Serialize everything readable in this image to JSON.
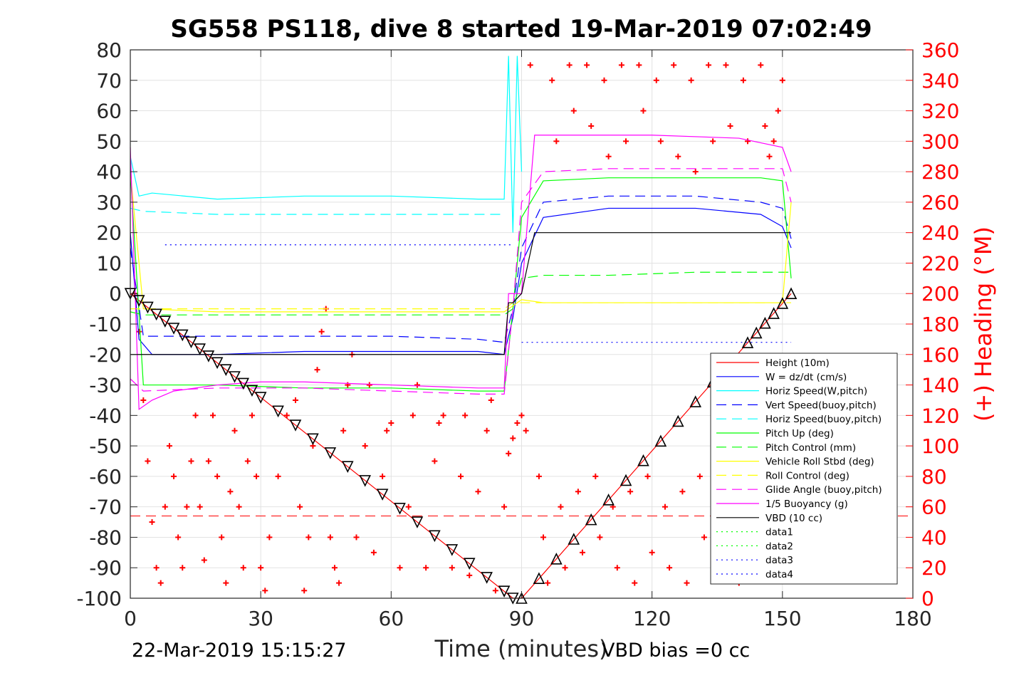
{
  "chart_data": {
    "type": "line",
    "title": "SG558 PS118, dive 8 started 19-Mar-2019 07:02:49",
    "xlabel": "Time (minutes)",
    "ylabel": "",
    "y2label": "(+) Heading (°M)",
    "xlim": [
      0,
      180
    ],
    "ylim": [
      -100,
      80
    ],
    "y2lim": [
      0,
      360
    ],
    "x_ticks": [
      "0",
      "30",
      "60",
      "90",
      "120",
      "150",
      "180"
    ],
    "y_ticks": [
      "80",
      "70",
      "60",
      "50",
      "40",
      "30",
      "20",
      "10",
      "0",
      "-10",
      "-20",
      "-30",
      "-40",
      "-50",
      "-60",
      "-70",
      "-80",
      "-90",
      "-100"
    ],
    "y2_ticks": [
      "360",
      "340",
      "320",
      "300",
      "280",
      "260",
      "240",
      "220",
      "200",
      "180",
      "160",
      "140",
      "120",
      "100",
      "80",
      "60",
      "40",
      "20",
      "0"
    ],
    "grid": true,
    "legend_position": "bottom-right",
    "footer_left": "22-Mar-2019 15:15:27",
    "footer_right": "VBD bias =0 cc",
    "colors": {
      "red": "#ff0000",
      "blue": "#0000ff",
      "cyan": "#00ffff",
      "green": "#00ff00",
      "yellow": "#ffff00",
      "magenta": "#ff00ff",
      "black": "#000000",
      "heading": "#ff0000"
    },
    "series": [
      {
        "name": "Height (10m)",
        "color": "#ff0000",
        "dash": "solid",
        "x": [
          0,
          88,
          90,
          152
        ],
        "y": [
          0,
          -100,
          -100,
          0
        ]
      },
      {
        "name": "W = dz/dt (cm/s)",
        "color": "#0000ff",
        "dash": "solid",
        "x": [
          0,
          2,
          5,
          20,
          40,
          60,
          80,
          86,
          88,
          90,
          95,
          110,
          130,
          145,
          150,
          152
        ],
        "y": [
          20,
          -15,
          -20,
          -20,
          -19,
          -19,
          -19,
          -20,
          -8,
          10,
          25,
          28,
          28,
          26,
          22,
          15
        ]
      },
      {
        "name": "Horiz Speed(W,pitch)",
        "color": "#00ffff",
        "dash": "solid",
        "x": [
          0,
          2,
          5,
          20,
          40,
          60,
          80,
          86,
          87,
          88,
          89,
          90
        ],
        "y": [
          45,
          32,
          33,
          31,
          32,
          32,
          31,
          31,
          78,
          20,
          78,
          40
        ]
      },
      {
        "name": "Vert Speed(buoy,pitch)",
        "color": "#0000ff",
        "dash": "dashed",
        "x": [
          0,
          3,
          20,
          40,
          60,
          80,
          86,
          88,
          90,
          95,
          110,
          130,
          145,
          150,
          152
        ],
        "y": [
          15,
          -14,
          -14,
          -14,
          -14,
          -15,
          -16,
          -5,
          15,
          30,
          32,
          32,
          30,
          28,
          18
        ]
      },
      {
        "name": "Horiz Speed(buoy,pitch)",
        "color": "#00ffff",
        "dash": "dashed",
        "x": [
          0,
          3,
          20,
          40,
          60,
          80,
          86
        ],
        "y": [
          28,
          27,
          26,
          26,
          26,
          26,
          26
        ]
      },
      {
        "name": "Pitch Up (deg)",
        "color": "#00ff00",
        "dash": "solid",
        "x": [
          0,
          3,
          20,
          40,
          60,
          80,
          86,
          88,
          90,
          95,
          110,
          130,
          145,
          150,
          152
        ],
        "y": [
          40,
          -30,
          -30,
          -31,
          -31,
          -32,
          -32,
          -5,
          25,
          37,
          38,
          38,
          38,
          37,
          5
        ]
      },
      {
        "name": "Pitch Control (mm)",
        "color": "#00ff00",
        "dash": "dashed",
        "x": [
          0,
          3,
          20,
          40,
          60,
          80,
          86,
          88,
          90,
          95,
          110,
          130,
          150,
          152
        ],
        "y": [
          -6,
          -7,
          -7,
          -7,
          -7,
          -7,
          -7,
          -5,
          5,
          6,
          6,
          7,
          7,
          7
        ]
      },
      {
        "name": "Vehicle Roll Stbd (deg)",
        "color": "#ffff00",
        "dash": "solid",
        "x": [
          0,
          3,
          20,
          40,
          60,
          80,
          86,
          88,
          90,
          95,
          110,
          130,
          150,
          152
        ],
        "y": [
          40,
          -5,
          -6,
          -6,
          -6,
          -6,
          -6,
          -4,
          -2,
          -3,
          -3,
          -3,
          -3,
          30
        ]
      },
      {
        "name": "Roll Control (deg)",
        "color": "#ffff00",
        "dash": "dashed",
        "x": [
          0,
          3,
          40,
          86,
          88,
          90,
          152
        ],
        "y": [
          -5,
          -5,
          -5,
          -5,
          -3,
          -3,
          -3
        ]
      },
      {
        "name": "Glide Angle (buoy,pitch)",
        "color": "#ff00ff",
        "dash": "dashed",
        "x": [
          0,
          3,
          20,
          40,
          60,
          80,
          86,
          88,
          90,
          95,
          110,
          130,
          150,
          152
        ],
        "y": [
          -28,
          -32,
          -31,
          -31,
          -32,
          -33,
          -33,
          -5,
          30,
          40,
          41,
          41,
          41,
          30
        ]
      },
      {
        "name": "1/5 Buoyancy (g)",
        "color": "#ff00ff",
        "dash": "solid",
        "x": [
          0,
          2,
          5,
          10,
          20,
          30,
          40,
          60,
          80,
          86,
          87,
          88,
          90,
          93,
          100,
          120,
          140,
          150,
          152
        ],
        "y": [
          48,
          -38,
          -35,
          -32,
          -30,
          -29,
          -29,
          -30,
          -31,
          -31,
          0,
          0,
          0,
          52,
          52,
          52,
          51,
          48,
          40
        ]
      },
      {
        "name": "VBD (10 cc)",
        "color": "#000000",
        "dash": "solid",
        "x": [
          0,
          86,
          87,
          88,
          90,
          93,
          100,
          120,
          140,
          152
        ],
        "y": [
          -20,
          -20,
          -3,
          -3,
          0,
          20,
          20,
          20,
          20,
          20
        ]
      },
      {
        "name": "data1",
        "color": "#00ff00",
        "dash": "dotted",
        "x": [],
        "y": []
      },
      {
        "name": "data2",
        "color": "#00ff00",
        "dash": "dotted",
        "x": [],
        "y": []
      },
      {
        "name": "data3",
        "color": "#0000ff",
        "dash": "dotted",
        "x": [
          8,
          88
        ],
        "y": [
          16,
          16
        ]
      },
      {
        "name": "data4",
        "color": "#0000ff",
        "dash": "dotted",
        "x": [
          90,
          152
        ],
        "y": [
          -16,
          -16
        ]
      }
    ],
    "reference_lines": [
      {
        "color": "#ff0000",
        "dash": "dashed",
        "y": -73
      }
    ],
    "markers_down": {
      "marker": "triangle",
      "x": [
        0,
        2,
        4,
        6,
        8,
        10,
        12,
        14,
        16,
        18,
        20,
        22,
        24,
        26,
        28,
        30,
        34,
        38,
        42,
        46,
        50,
        54,
        58,
        62,
        66,
        70,
        74,
        78,
        82,
        86,
        88
      ],
      "y": [
        0,
        -2.3,
        -4.5,
        -6.8,
        -9.1,
        -11.4,
        -13.6,
        -15.9,
        -18.2,
        -20.5,
        -22.7,
        -25,
        -27.3,
        -29.5,
        -31.8,
        -34.1,
        -38.6,
        -43.2,
        -47.7,
        -52.3,
        -56.8,
        -61.4,
        -65.9,
        -70.5,
        -75,
        -79.5,
        -84.1,
        -88.6,
        -93.2,
        -97.7,
        -100
      ]
    },
    "markers_up": {
      "marker": "triangle",
      "x": [
        90,
        94,
        98,
        102,
        106,
        110,
        114,
        118,
        122,
        126,
        130,
        134,
        138,
        142,
        144,
        146,
        148,
        150,
        152
      ],
      "y": [
        -100,
        -93.5,
        -87.1,
        -80.6,
        -74.2,
        -67.7,
        -61.3,
        -54.8,
        -48.4,
        -41.9,
        -35.5,
        -29,
        -22.6,
        -16.1,
        -12.9,
        -9.7,
        -6.5,
        -3.2,
        0
      ]
    },
    "heading_samples": [
      {
        "x": 1,
        "y": 200
      },
      {
        "x": 2,
        "y": 175
      },
      {
        "x": 3,
        "y": 130
      },
      {
        "x": 4,
        "y": 90
      },
      {
        "x": 5,
        "y": 50
      },
      {
        "x": 6,
        "y": 20
      },
      {
        "x": 7,
        "y": 10
      },
      {
        "x": 8,
        "y": 60
      },
      {
        "x": 9,
        "y": 100
      },
      {
        "x": 10,
        "y": 80
      },
      {
        "x": 11,
        "y": 40
      },
      {
        "x": 12,
        "y": 20
      },
      {
        "x": 13,
        "y": 60
      },
      {
        "x": 14,
        "y": 90
      },
      {
        "x": 15,
        "y": 120
      },
      {
        "x": 16,
        "y": 60
      },
      {
        "x": 17,
        "y": 25
      },
      {
        "x": 18,
        "y": 90
      },
      {
        "x": 19,
        "y": 120
      },
      {
        "x": 20,
        "y": 80
      },
      {
        "x": 21,
        "y": 40
      },
      {
        "x": 22,
        "y": 10
      },
      {
        "x": 23,
        "y": 70
      },
      {
        "x": 24,
        "y": 110
      },
      {
        "x": 25,
        "y": 60
      },
      {
        "x": 26,
        "y": 20
      },
      {
        "x": 27,
        "y": 90
      },
      {
        "x": 28,
        "y": 120
      },
      {
        "x": 29,
        "y": 80
      },
      {
        "x": 30,
        "y": 20
      },
      {
        "x": 31,
        "y": 5
      },
      {
        "x": 32,
        "y": 40
      },
      {
        "x": 34,
        "y": 80
      },
      {
        "x": 36,
        "y": 120
      },
      {
        "x": 38,
        "y": 130
      },
      {
        "x": 39,
        "y": 60
      },
      {
        "x": 40,
        "y": 5
      },
      {
        "x": 41,
        "y": 40
      },
      {
        "x": 42,
        "y": 100
      },
      {
        "x": 43,
        "y": 150
      },
      {
        "x": 44,
        "y": 175
      },
      {
        "x": 45,
        "y": 190
      },
      {
        "x": 46,
        "y": 40
      },
      {
        "x": 47,
        "y": 20
      },
      {
        "x": 48,
        "y": 10
      },
      {
        "x": 49,
        "y": 110
      },
      {
        "x": 50,
        "y": 140
      },
      {
        "x": 51,
        "y": 160
      },
      {
        "x": 52,
        "y": 40
      },
      {
        "x": 54,
        "y": 100
      },
      {
        "x": 55,
        "y": 140
      },
      {
        "x": 56,
        "y": 30
      },
      {
        "x": 58,
        "y": 80
      },
      {
        "x": 59,
        "y": 110
      },
      {
        "x": 60,
        "y": 115
      },
      {
        "x": 62,
        "y": 20
      },
      {
        "x": 64,
        "y": 60
      },
      {
        "x": 65,
        "y": 120
      },
      {
        "x": 66,
        "y": 140
      },
      {
        "x": 68,
        "y": 20
      },
      {
        "x": 70,
        "y": 90
      },
      {
        "x": 71,
        "y": 115
      },
      {
        "x": 72,
        "y": 120
      },
      {
        "x": 74,
        "y": 20
      },
      {
        "x": 76,
        "y": 80
      },
      {
        "x": 77,
        "y": 120
      },
      {
        "x": 78,
        "y": 15
      },
      {
        "x": 80,
        "y": 70
      },
      {
        "x": 82,
        "y": 110
      },
      {
        "x": 83,
        "y": 130
      },
      {
        "x": 84,
        "y": 5
      },
      {
        "x": 86,
        "y": 60
      },
      {
        "x": 87,
        "y": 95
      },
      {
        "x": 88,
        "y": 105
      },
      {
        "x": 89,
        "y": 115
      },
      {
        "x": 90,
        "y": 120
      },
      {
        "x": 91,
        "y": 110
      },
      {
        "x": 92,
        "y": 350
      },
      {
        "x": 94,
        "y": 80
      },
      {
        "x": 95,
        "y": 40
      },
      {
        "x": 96,
        "y": 10
      },
      {
        "x": 97,
        "y": 340
      },
      {
        "x": 98,
        "y": 300
      },
      {
        "x": 99,
        "y": 60
      },
      {
        "x": 100,
        "y": 20
      },
      {
        "x": 101,
        "y": 350
      },
      {
        "x": 102,
        "y": 320
      },
      {
        "x": 103,
        "y": 70
      },
      {
        "x": 104,
        "y": 30
      },
      {
        "x": 105,
        "y": 350
      },
      {
        "x": 106,
        "y": 310
      },
      {
        "x": 107,
        "y": 80
      },
      {
        "x": 108,
        "y": 40
      },
      {
        "x": 109,
        "y": 340
      },
      {
        "x": 110,
        "y": 290
      },
      {
        "x": 111,
        "y": 60
      },
      {
        "x": 112,
        "y": 20
      },
      {
        "x": 113,
        "y": 350
      },
      {
        "x": 114,
        "y": 300
      },
      {
        "x": 115,
        "y": 70
      },
      {
        "x": 116,
        "y": 10
      },
      {
        "x": 117,
        "y": 350
      },
      {
        "x": 118,
        "y": 320
      },
      {
        "x": 119,
        "y": 80
      },
      {
        "x": 120,
        "y": 30
      },
      {
        "x": 121,
        "y": 340
      },
      {
        "x": 122,
        "y": 300
      },
      {
        "x": 123,
        "y": 60
      },
      {
        "x": 124,
        "y": 20
      },
      {
        "x": 125,
        "y": 350
      },
      {
        "x": 126,
        "y": 290
      },
      {
        "x": 127,
        "y": 70
      },
      {
        "x": 128,
        "y": 10
      },
      {
        "x": 129,
        "y": 340
      },
      {
        "x": 130,
        "y": 280
      },
      {
        "x": 131,
        "y": 80
      },
      {
        "x": 132,
        "y": 40
      },
      {
        "x": 133,
        "y": 350
      },
      {
        "x": 134,
        "y": 300
      },
      {
        "x": 135,
        "y": 60
      },
      {
        "x": 136,
        "y": 20
      },
      {
        "x": 137,
        "y": 350
      },
      {
        "x": 138,
        "y": 310
      },
      {
        "x": 139,
        "y": 70
      },
      {
        "x": 140,
        "y": 10
      },
      {
        "x": 141,
        "y": 340
      },
      {
        "x": 142,
        "y": 300
      },
      {
        "x": 143,
        "y": 80
      },
      {
        "x": 144,
        "y": 30
      },
      {
        "x": 145,
        "y": 350
      },
      {
        "x": 146,
        "y": 310
      },
      {
        "x": 147,
        "y": 290
      },
      {
        "x": 148,
        "y": 300
      },
      {
        "x": 149,
        "y": 320
      },
      {
        "x": 150,
        "y": 340
      }
    ]
  }
}
